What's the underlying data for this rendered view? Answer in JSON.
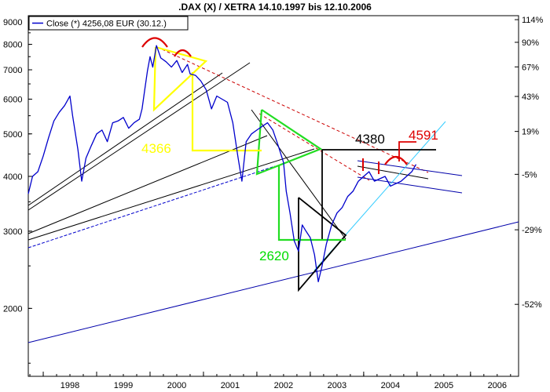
{
  "chart_data": {
    "type": "line",
    "title": ".DAX (X) / XETRA 14.10.1997 bis 12.10.2006",
    "legend": {
      "label": "Close (*) 4256,08 EUR (30.12.)",
      "color": "#0000cc",
      "placement": "top-left"
    },
    "y_scale": "log",
    "ylim": [
      1400,
      9300
    ],
    "xlim": [
      1997.72,
      2006.9
    ],
    "y_ticks_left": [
      "9000",
      "8000",
      "7000",
      "6000",
      "5000",
      "4000",
      "3000",
      "2000"
    ],
    "y_ticks_right": [
      "114%",
      "90%",
      "67%",
      "43%",
      "19%",
      "-5%",
      "-29%",
      "-52%"
    ],
    "x_ticks": [
      "1998",
      "1999",
      "2000",
      "2001",
      "2002",
      "2003",
      "2004",
      "2005",
      "2006"
    ],
    "series": [
      {
        "name": "Close (*) 4256,08 EUR (30.12.)",
        "color": "#0000cc",
        "x": [
          1997.72,
          1997.8,
          1997.9,
          1998.0,
          1998.1,
          1998.2,
          1998.3,
          1998.4,
          1998.5,
          1998.55,
          1998.65,
          1998.72,
          1998.8,
          1998.9,
          1999.0,
          1999.1,
          1999.2,
          1999.3,
          1999.4,
          1999.5,
          1999.6,
          1999.7,
          1999.8,
          1999.85,
          1999.9,
          1999.95,
          2000.0,
          2000.05,
          2000.12,
          2000.2,
          2000.3,
          2000.4,
          2000.5,
          2000.6,
          2000.7,
          2000.75,
          2000.85,
          2000.95,
          2001.05,
          2001.15,
          2001.25,
          2001.35,
          2001.45,
          2001.55,
          2001.65,
          2001.72,
          2001.8,
          2001.9,
          2002.0,
          2002.1,
          2002.2,
          2002.3,
          2002.4,
          2002.5,
          2002.55,
          2002.62,
          2002.7,
          2002.78,
          2002.85,
          2002.92,
          2003.0,
          2003.08,
          2003.15,
          2003.22,
          2003.3,
          2003.4,
          2003.5,
          2003.6,
          2003.7,
          2003.8,
          2003.9,
          2004.0,
          2004.1,
          2004.2,
          2004.3,
          2004.4,
          2004.5,
          2004.6,
          2004.7,
          2004.8,
          2004.9,
          2004.98
        ],
        "y": [
          3650,
          4000,
          4100,
          4450,
          4900,
          5350,
          5600,
          5800,
          6100,
          5500,
          4600,
          3900,
          4400,
          4700,
          5000,
          5100,
          4800,
          5300,
          5350,
          5450,
          5150,
          5300,
          5400,
          5700,
          6300,
          6950,
          7500,
          7100,
          7950,
          7450,
          7300,
          7100,
          7350,
          6900,
          7200,
          6850,
          6800,
          6600,
          6300,
          5700,
          6100,
          6000,
          5900,
          5300,
          4400,
          3900,
          4800,
          5000,
          5100,
          5200,
          5300,
          5100,
          4700,
          4300,
          3700,
          3300,
          2850,
          2700,
          3100,
          3000,
          2900,
          2650,
          2300,
          2500,
          2800,
          3100,
          3300,
          3400,
          3600,
          3700,
          3900,
          4000,
          4100,
          3900,
          3950,
          4000,
          3800,
          3850,
          3900,
          4000,
          4100,
          4260
        ]
      }
    ],
    "annotations": [
      {
        "text": "4366",
        "color": "#ffff00"
      },
      {
        "text": "2620",
        "color": "#00dd00"
      },
      {
        "text": "4380",
        "color": "#000000"
      },
      {
        "text": "4591",
        "color": "#dd0000"
      }
    ],
    "grid": false
  }
}
